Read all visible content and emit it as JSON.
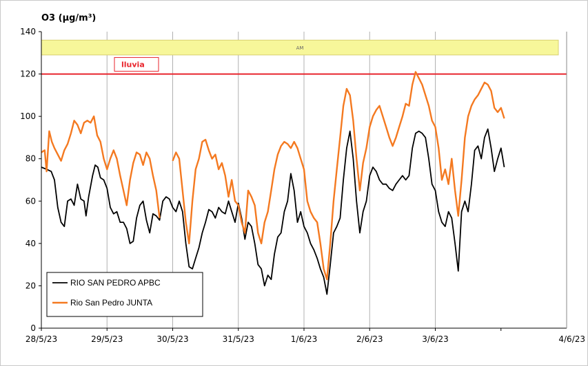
{
  "chart_data": {
    "type": "line",
    "title": "O3  (µg/m³)",
    "ylim": [
      0,
      140
    ],
    "yticks": [
      0,
      20,
      40,
      60,
      80,
      100,
      120,
      140
    ],
    "xlim": [
      0,
      8
    ],
    "xticks": [
      "28/5/23",
      "29/5/23",
      "30/5/23",
      "31/5/23",
      "1/6/23",
      "2/6/23",
      "3/6/23",
      "4/6/23"
    ],
    "grid": "vertical",
    "legend_position": "bottom-left",
    "band": {
      "label": "AM",
      "y_from": 129,
      "y_to": 136,
      "color": "#f7f79a"
    },
    "threshold": {
      "label": "lluvia",
      "value": 120,
      "color": "#e8232b"
    },
    "series": [
      {
        "name": "RIO SAN PEDRO APBC",
        "color": "#000000",
        "points": [
          [
            0.0,
            76
          ],
          [
            0.08,
            75
          ],
          [
            0.15,
            74
          ],
          [
            0.2,
            70
          ],
          [
            0.25,
            57
          ],
          [
            0.3,
            50
          ],
          [
            0.35,
            48
          ],
          [
            0.4,
            60
          ],
          [
            0.45,
            61
          ],
          [
            0.5,
            58
          ],
          [
            0.55,
            68
          ],
          [
            0.6,
            61
          ],
          [
            0.65,
            60
          ],
          [
            0.68,
            53
          ],
          [
            0.72,
            62
          ],
          [
            0.78,
            72
          ],
          [
            0.82,
            77
          ],
          [
            0.86,
            76
          ],
          [
            0.9,
            71
          ],
          [
            0.95,
            70
          ],
          [
            1.0,
            66
          ],
          [
            1.05,
            57
          ],
          [
            1.1,
            54
          ],
          [
            1.15,
            55
          ],
          [
            1.2,
            50
          ],
          [
            1.25,
            50
          ],
          [
            1.3,
            47
          ],
          [
            1.35,
            40
          ],
          [
            1.4,
            41
          ],
          [
            1.45,
            52
          ],
          [
            1.5,
            58
          ],
          [
            1.55,
            60
          ],
          [
            1.6,
            51
          ],
          [
            1.65,
            45
          ],
          [
            1.7,
            54
          ],
          [
            1.75,
            53
          ],
          [
            1.8,
            51
          ],
          [
            1.85,
            60
          ],
          [
            1.9,
            62
          ],
          [
            1.95,
            61
          ],
          [
            2.0,
            57
          ],
          [
            2.05,
            55
          ],
          [
            2.1,
            60
          ],
          [
            2.15,
            55
          ],
          [
            2.2,
            40
          ],
          [
            2.25,
            29
          ],
          [
            2.3,
            28
          ],
          [
            2.35,
            33
          ],
          [
            2.4,
            38
          ],
          [
            2.45,
            45
          ],
          [
            2.5,
            50
          ],
          [
            2.55,
            56
          ],
          [
            2.6,
            55
          ],
          [
            2.65,
            52
          ],
          [
            2.7,
            57
          ],
          [
            2.75,
            55
          ],
          [
            2.8,
            54
          ],
          [
            2.85,
            60
          ],
          [
            2.9,
            55
          ],
          [
            2.95,
            50
          ],
          [
            3.0,
            59
          ],
          [
            3.05,
            52
          ],
          [
            3.1,
            42
          ],
          [
            3.15,
            50
          ],
          [
            3.2,
            48
          ],
          [
            3.25,
            40
          ],
          [
            3.3,
            30
          ],
          [
            3.35,
            28
          ],
          [
            3.4,
            20
          ],
          [
            3.45,
            25
          ],
          [
            3.5,
            23
          ],
          [
            3.55,
            35
          ],
          [
            3.6,
            43
          ],
          [
            3.65,
            45
          ],
          [
            3.7,
            55
          ],
          [
            3.75,
            60
          ],
          [
            3.8,
            73
          ],
          [
            3.85,
            65
          ],
          [
            3.9,
            50
          ],
          [
            3.95,
            55
          ],
          [
            4.0,
            48
          ],
          [
            4.05,
            45
          ],
          [
            4.1,
            40
          ],
          [
            4.15,
            37
          ],
          [
            4.2,
            33
          ],
          [
            4.25,
            28
          ],
          [
            4.3,
            24
          ],
          [
            4.35,
            16
          ],
          [
            4.4,
            30
          ],
          [
            4.45,
            45
          ],
          [
            4.5,
            48
          ],
          [
            4.55,
            52
          ],
          [
            4.6,
            70
          ],
          [
            4.65,
            85
          ],
          [
            4.7,
            93
          ],
          [
            4.75,
            80
          ],
          [
            4.8,
            60
          ],
          [
            4.85,
            45
          ],
          [
            4.9,
            55
          ],
          [
            4.95,
            60
          ],
          [
            5.0,
            72
          ],
          [
            5.05,
            76
          ],
          [
            5.1,
            74
          ],
          [
            5.15,
            70
          ],
          [
            5.2,
            68
          ],
          [
            5.25,
            68
          ],
          [
            5.3,
            66
          ],
          [
            5.35,
            65
          ],
          [
            5.4,
            68
          ],
          [
            5.45,
            70
          ],
          [
            5.5,
            72
          ],
          [
            5.55,
            70
          ],
          [
            5.6,
            72
          ],
          [
            5.65,
            85
          ],
          [
            5.7,
            92
          ],
          [
            5.75,
            93
          ],
          [
            5.8,
            92
          ],
          [
            5.85,
            90
          ],
          [
            5.9,
            80
          ],
          [
            5.95,
            68
          ],
          [
            6.0,
            65
          ],
          [
            6.05,
            55
          ],
          [
            6.1,
            50
          ],
          [
            6.15,
            48
          ],
          [
            6.2,
            55
          ],
          [
            6.25,
            52
          ],
          [
            6.3,
            40
          ],
          [
            6.35,
            27
          ],
          [
            6.4,
            55
          ],
          [
            6.45,
            60
          ],
          [
            6.5,
            55
          ],
          [
            6.55,
            68
          ],
          [
            6.6,
            84
          ],
          [
            6.65,
            86
          ],
          [
            6.7,
            80
          ],
          [
            6.75,
            90
          ],
          [
            6.8,
            94
          ],
          [
            6.85,
            85
          ],
          [
            6.9,
            74
          ],
          [
            6.95,
            80
          ],
          [
            7.0,
            85
          ],
          [
            7.05,
            76
          ]
        ]
      },
      {
        "name": "Rio San Pedro JUNTA",
        "color": "#f47920",
        "points": [
          [
            0.0,
            83
          ],
          [
            0.05,
            84
          ],
          [
            0.08,
            74
          ],
          [
            0.12,
            93
          ],
          [
            0.16,
            88
          ],
          [
            0.2,
            85
          ],
          [
            0.25,
            82
          ],
          [
            0.3,
            79
          ],
          [
            0.35,
            84
          ],
          [
            0.4,
            87
          ],
          [
            0.45,
            92
          ],
          [
            0.5,
            98
          ],
          [
            0.55,
            96
          ],
          [
            0.6,
            92
          ],
          [
            0.65,
            97
          ],
          [
            0.7,
            98
          ],
          [
            0.75,
            97
          ],
          [
            0.8,
            100
          ],
          [
            0.85,
            91
          ],
          [
            0.9,
            88
          ],
          [
            0.95,
            80
          ],
          [
            1.0,
            75
          ],
          [
            1.05,
            80
          ],
          [
            1.1,
            84
          ],
          [
            1.15,
            80
          ],
          [
            1.2,
            72
          ],
          [
            1.25,
            65
          ],
          [
            1.3,
            58
          ],
          [
            1.35,
            70
          ],
          [
            1.4,
            78
          ],
          [
            1.45,
            83
          ],
          [
            1.5,
            82
          ],
          [
            1.55,
            77
          ],
          [
            1.6,
            83
          ],
          [
            1.65,
            80
          ],
          [
            1.7,
            72
          ],
          [
            1.75,
            65
          ],
          [
            1.8,
            52
          ],
          null,
          [
            2.0,
            79
          ],
          [
            2.05,
            83
          ],
          [
            2.1,
            80
          ],
          [
            2.15,
            65
          ],
          [
            2.2,
            50
          ],
          [
            2.25,
            40
          ],
          [
            2.3,
            60
          ],
          [
            2.35,
            75
          ],
          [
            2.4,
            80
          ],
          [
            2.45,
            88
          ],
          [
            2.5,
            89
          ],
          [
            2.55,
            84
          ],
          [
            2.6,
            80
          ],
          [
            2.65,
            82
          ],
          [
            2.7,
            75
          ],
          [
            2.75,
            78
          ],
          [
            2.8,
            72
          ],
          [
            2.85,
            62
          ],
          [
            2.9,
            70
          ],
          [
            2.95,
            60
          ],
          [
            3.0,
            58
          ],
          [
            3.05,
            50
          ],
          [
            3.1,
            45
          ],
          [
            3.15,
            65
          ],
          [
            3.2,
            62
          ],
          [
            3.25,
            58
          ],
          [
            3.3,
            45
          ],
          [
            3.35,
            40
          ],
          [
            3.4,
            50
          ],
          [
            3.45,
            55
          ],
          [
            3.5,
            65
          ],
          [
            3.55,
            75
          ],
          [
            3.6,
            82
          ],
          [
            3.65,
            86
          ],
          [
            3.7,
            88
          ],
          [
            3.75,
            87
          ],
          [
            3.8,
            85
          ],
          [
            3.85,
            88
          ],
          [
            3.9,
            85
          ],
          [
            3.95,
            80
          ],
          [
            4.0,
            75
          ],
          [
            4.05,
            60
          ],
          [
            4.1,
            55
          ],
          [
            4.15,
            52
          ],
          [
            4.2,
            50
          ],
          [
            4.25,
            40
          ],
          [
            4.3,
            28
          ],
          [
            4.35,
            23
          ],
          [
            4.4,
            40
          ],
          [
            4.45,
            60
          ],
          [
            4.5,
            75
          ],
          [
            4.55,
            90
          ],
          [
            4.6,
            105
          ],
          [
            4.65,
            113
          ],
          [
            4.7,
            110
          ],
          [
            4.75,
            98
          ],
          [
            4.8,
            80
          ],
          [
            4.85,
            65
          ],
          [
            4.9,
            78
          ],
          [
            4.95,
            85
          ],
          [
            5.0,
            95
          ],
          [
            5.05,
            100
          ],
          [
            5.1,
            103
          ],
          [
            5.15,
            105
          ],
          [
            5.2,
            100
          ],
          [
            5.25,
            95
          ],
          [
            5.3,
            90
          ],
          [
            5.35,
            86
          ],
          [
            5.4,
            90
          ],
          [
            5.45,
            95
          ],
          [
            5.5,
            100
          ],
          [
            5.55,
            106
          ],
          [
            5.6,
            105
          ],
          [
            5.65,
            115
          ],
          [
            5.7,
            121
          ],
          [
            5.75,
            118
          ],
          [
            5.8,
            115
          ],
          [
            5.85,
            110
          ],
          [
            5.9,
            105
          ],
          [
            5.95,
            98
          ],
          [
            6.0,
            95
          ],
          [
            6.05,
            85
          ],
          [
            6.1,
            70
          ],
          [
            6.15,
            75
          ],
          [
            6.2,
            68
          ],
          [
            6.25,
            80
          ],
          [
            6.3,
            65
          ],
          [
            6.35,
            53
          ],
          [
            6.4,
            70
          ],
          [
            6.45,
            90
          ],
          [
            6.5,
            100
          ],
          [
            6.55,
            105
          ],
          [
            6.6,
            108
          ],
          [
            6.65,
            110
          ],
          [
            6.7,
            113
          ],
          [
            6.75,
            116
          ],
          [
            6.8,
            115
          ],
          [
            6.85,
            112
          ],
          [
            6.9,
            104
          ],
          [
            6.95,
            102
          ],
          [
            7.0,
            104
          ],
          [
            7.05,
            99
          ]
        ]
      }
    ]
  }
}
